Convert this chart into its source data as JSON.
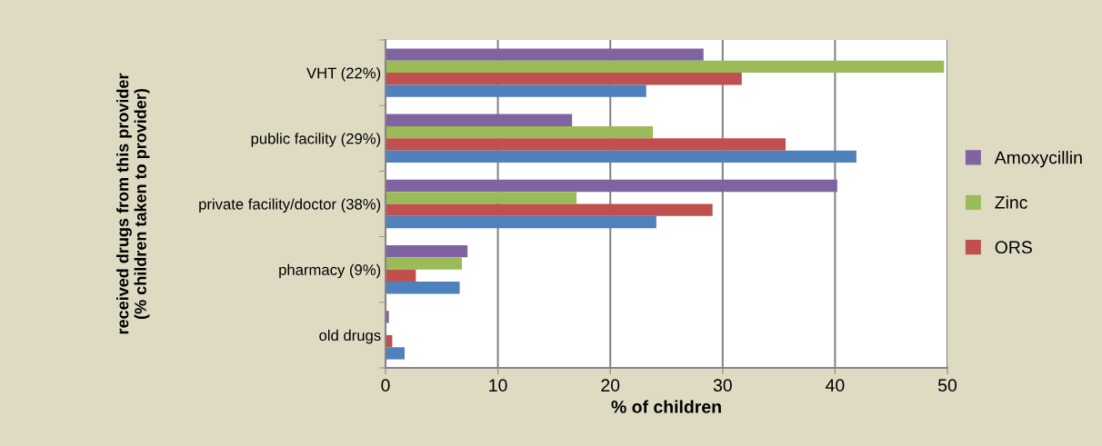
{
  "chart_data": {
    "type": "bar",
    "orientation": "horizontal",
    "ylabel": "received drugs from this provider\n(% children taken to provider)",
    "xlabel": "% of children",
    "categories": [
      "VHT (22%)",
      "public facility (29%)",
      "private facility/doctor (38%)",
      "pharmacy (9%)",
      "old drugs"
    ],
    "series": [
      {
        "name": "Amoxycillin",
        "color": "#8064a2",
        "values": [
          28.3,
          16.6,
          40.2,
          7.3,
          0.3
        ]
      },
      {
        "name": "Zinc",
        "color": "#9bbb59",
        "values": [
          49.7,
          23.8,
          17.0,
          6.8,
          0
        ]
      },
      {
        "name": "ORS",
        "color": "#c0504d",
        "values": [
          31.7,
          35.6,
          29.1,
          2.7,
          0.6
        ]
      },
      {
        "color": "#4f81bd",
        "values": [
          23.2,
          41.9,
          24.1,
          6.6,
          1.7
        ]
      }
    ],
    "xlim": [
      0,
      50
    ],
    "xticks": [
      0,
      10,
      20,
      30,
      40,
      50
    ],
    "grid": "x",
    "legend": "right"
  }
}
